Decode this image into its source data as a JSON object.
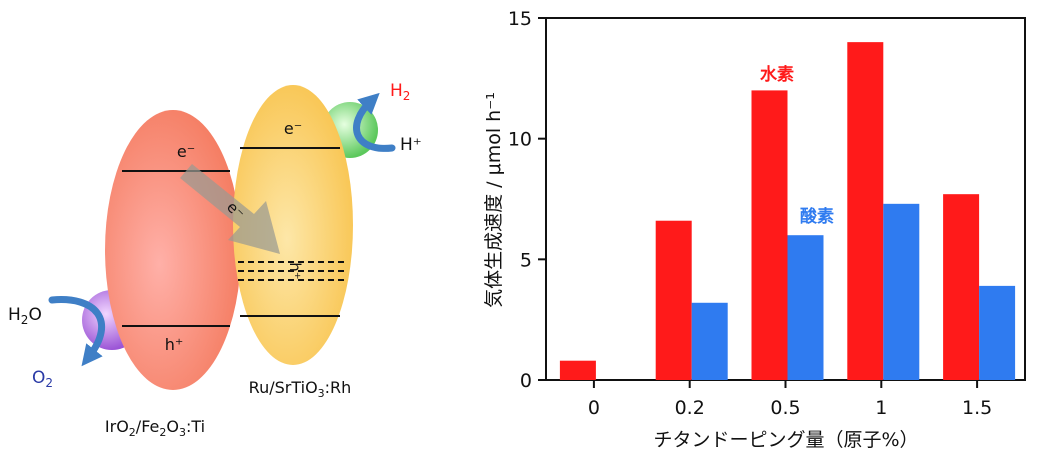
{
  "diagram": {
    "left_particle_label": "IrO2/Fe2O3:Ti",
    "right_particle_label": "Ru/SrTiO3:Rh",
    "electron_label": "e⁻",
    "hole_label": "h⁺",
    "transfer_electron_label": "e⁻",
    "transfer_hole_label": "h⁺",
    "water_label": "H2O",
    "oxygen_label": "O2",
    "proton_label": "H⁺",
    "hydrogen_label": "H2",
    "colors": {
      "left_particle": "#f47a5e",
      "right_particle": "#f8c24a",
      "oxygen_sphere": "#9b55d6",
      "hydrogen_sphere": "#5cc85c",
      "arrow": "#3f7fc6",
      "transfer_arrow": "#9a9a92"
    }
  },
  "chart_data": {
    "type": "bar",
    "categories": [
      "0",
      "0.2",
      "0.5",
      "1",
      "1.5"
    ],
    "series": [
      {
        "name": "水素",
        "values": [
          0.8,
          6.6,
          12.0,
          14.0,
          7.7
        ],
        "color": "#ff1a1a"
      },
      {
        "name": "酸素",
        "values": [
          0.0,
          3.2,
          6.0,
          7.3,
          3.9
        ],
        "color": "#2f7bf0"
      }
    ],
    "xlabel": "チタンドーピング量（原子%）",
    "ylabel": "気体生成速度 / μmol h⁻¹",
    "ylim": [
      0,
      15
    ],
    "yticks": [
      0,
      5,
      10,
      15
    ],
    "grid": false,
    "legend": "inline-labels"
  }
}
